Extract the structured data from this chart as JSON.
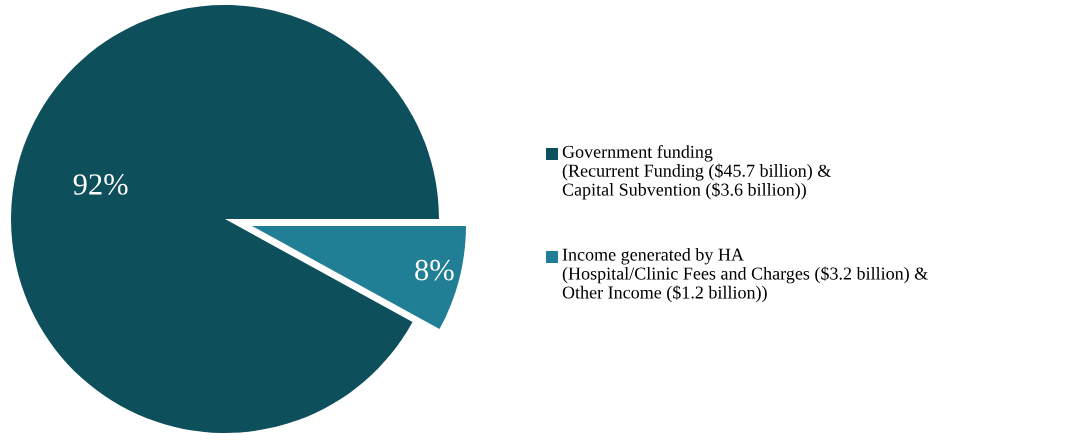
{
  "chart_data": {
    "type": "pie",
    "categories": [
      "Government funding\n(Recurrent Funding ($45.7 billion) &\nCapital Subvention ($3.6 billion))",
      "Income generated by HA\n(Hospital/Clinic Fees and Charges ($3.2 billion) &\nOther Income ($1.2 billion))"
    ],
    "values": [
      92,
      8
    ],
    "colors": [
      "#0e4f5c",
      "#207f94"
    ],
    "value_labels": [
      "92%",
      "8%"
    ],
    "legend": "right"
  }
}
